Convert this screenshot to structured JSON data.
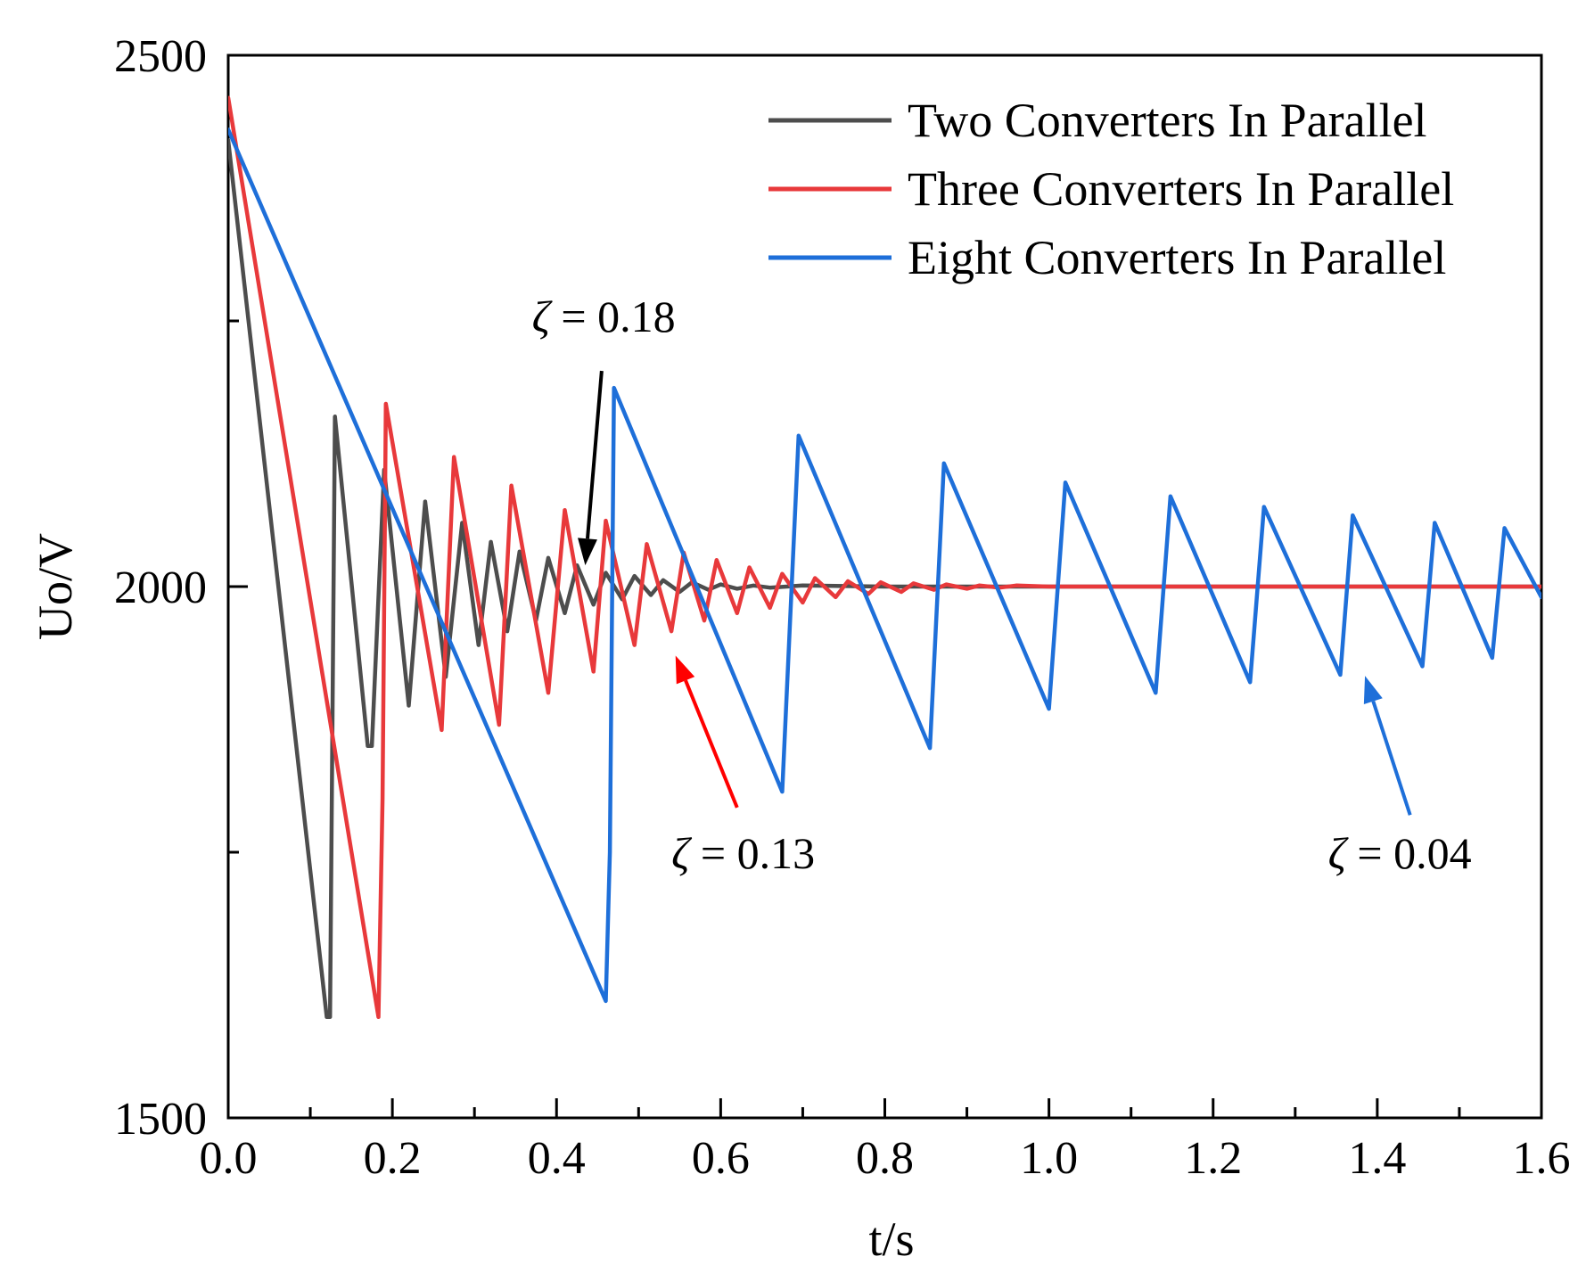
{
  "chart_data": {
    "type": "line",
    "title": "",
    "xlabel": "t/s",
    "ylabel": "Uo/V",
    "xlim": [
      0.0,
      1.6
    ],
    "ylim": [
      1500,
      2500
    ],
    "xticks": [
      "0.0",
      "0.2",
      "0.4",
      "0.6",
      "0.8",
      "1.0",
      "1.2",
      "1.4",
      "1.6"
    ],
    "yticks": [
      "1500",
      "2000",
      "2500"
    ],
    "legend_position": "top-right",
    "series": [
      {
        "name": "Two Converters In Parallel",
        "color": "#4d4d4d",
        "x": [
          0.0,
          0.12,
          0.124,
          0.13,
          0.17,
          0.175,
          0.19,
          0.22,
          0.24,
          0.265,
          0.285,
          0.305,
          0.32,
          0.34,
          0.355,
          0.375,
          0.39,
          0.41,
          0.425,
          0.445,
          0.46,
          0.48,
          0.495,
          0.515,
          0.53,
          0.55,
          0.565,
          0.585,
          0.6,
          0.62,
          0.64,
          0.66,
          0.7,
          0.8,
          0.9,
          1.0,
          1.2,
          1.6
        ],
        "values": [
          2420,
          1595,
          1595,
          2160,
          1850,
          1850,
          2110,
          1888,
          2080,
          1915,
          2060,
          1945,
          2042,
          1958,
          2033,
          1968,
          2027,
          1975,
          2020,
          1983,
          2013,
          1988,
          2010,
          1992,
          2006,
          1995,
          2004,
          1997,
          2002,
          1998,
          2001,
          1999,
          2001,
          2000,
          2000,
          2000,
          2000,
          2000
        ]
      },
      {
        "name": "Three Converters In Parallel",
        "color": "#e8393b",
        "x": [
          0.0,
          0.183,
          0.188,
          0.192,
          0.26,
          0.275,
          0.33,
          0.345,
          0.39,
          0.41,
          0.445,
          0.46,
          0.495,
          0.51,
          0.54,
          0.555,
          0.58,
          0.595,
          0.62,
          0.635,
          0.66,
          0.675,
          0.7,
          0.715,
          0.74,
          0.755,
          0.78,
          0.795,
          0.82,
          0.835,
          0.86,
          0.875,
          0.9,
          0.915,
          0.94,
          0.96,
          1.0,
          1.6
        ],
        "values": [
          2460,
          1595,
          1800,
          2172,
          1865,
          2122,
          1870,
          2095,
          1900,
          2072,
          1920,
          2062,
          1945,
          2040,
          1958,
          2032,
          1968,
          2025,
          1975,
          2018,
          1980,
          2012,
          1985,
          2008,
          1990,
          2005,
          1993,
          2004,
          1995,
          2003,
          1997,
          2002,
          1998,
          2001,
          1999,
          2001,
          2000,
          2000
        ]
      },
      {
        "name": "Eight Converters In Parallel",
        "color": "#1e6fd9",
        "x": [
          0.0,
          0.46,
          0.465,
          0.47,
          0.675,
          0.695,
          0.855,
          0.872,
          1.0,
          1.02,
          1.13,
          1.148,
          1.245,
          1.262,
          1.355,
          1.37,
          1.455,
          1.47,
          1.54,
          1.555,
          1.6
        ],
        "values": [
          2430,
          1610,
          1750,
          2187,
          1807,
          2142,
          1848,
          2116,
          1885,
          2098,
          1900,
          2085,
          1910,
          2075,
          1917,
          2067,
          1925,
          2060,
          1933,
          2055,
          1990
        ]
      }
    ],
    "annotations": [
      {
        "label": "ζ",
        "value_text": " = 0.18",
        "color": "#000000",
        "target": {
          "x": 0.435,
          "y": 2020
        },
        "from": {
          "x": 0.455,
          "y": 2203
        },
        "text_at": {
          "x": 0.37,
          "y": 2240
        }
      },
      {
        "label": "ζ",
        "value_text": " = 0.13",
        "color": "#ff0000",
        "target": {
          "x": 0.545,
          "y": 1935
        },
        "from": {
          "x": 0.62,
          "y": 1792
        },
        "text_at": {
          "x": 0.54,
          "y": 1735
        }
      },
      {
        "label": "ζ",
        "value_text": " = 0.04",
        "color": "#1e6fd9",
        "target": {
          "x": 1.385,
          "y": 1916
        },
        "from": {
          "x": 1.44,
          "y": 1785
        },
        "text_at": {
          "x": 1.34,
          "y": 1735
        }
      }
    ]
  }
}
